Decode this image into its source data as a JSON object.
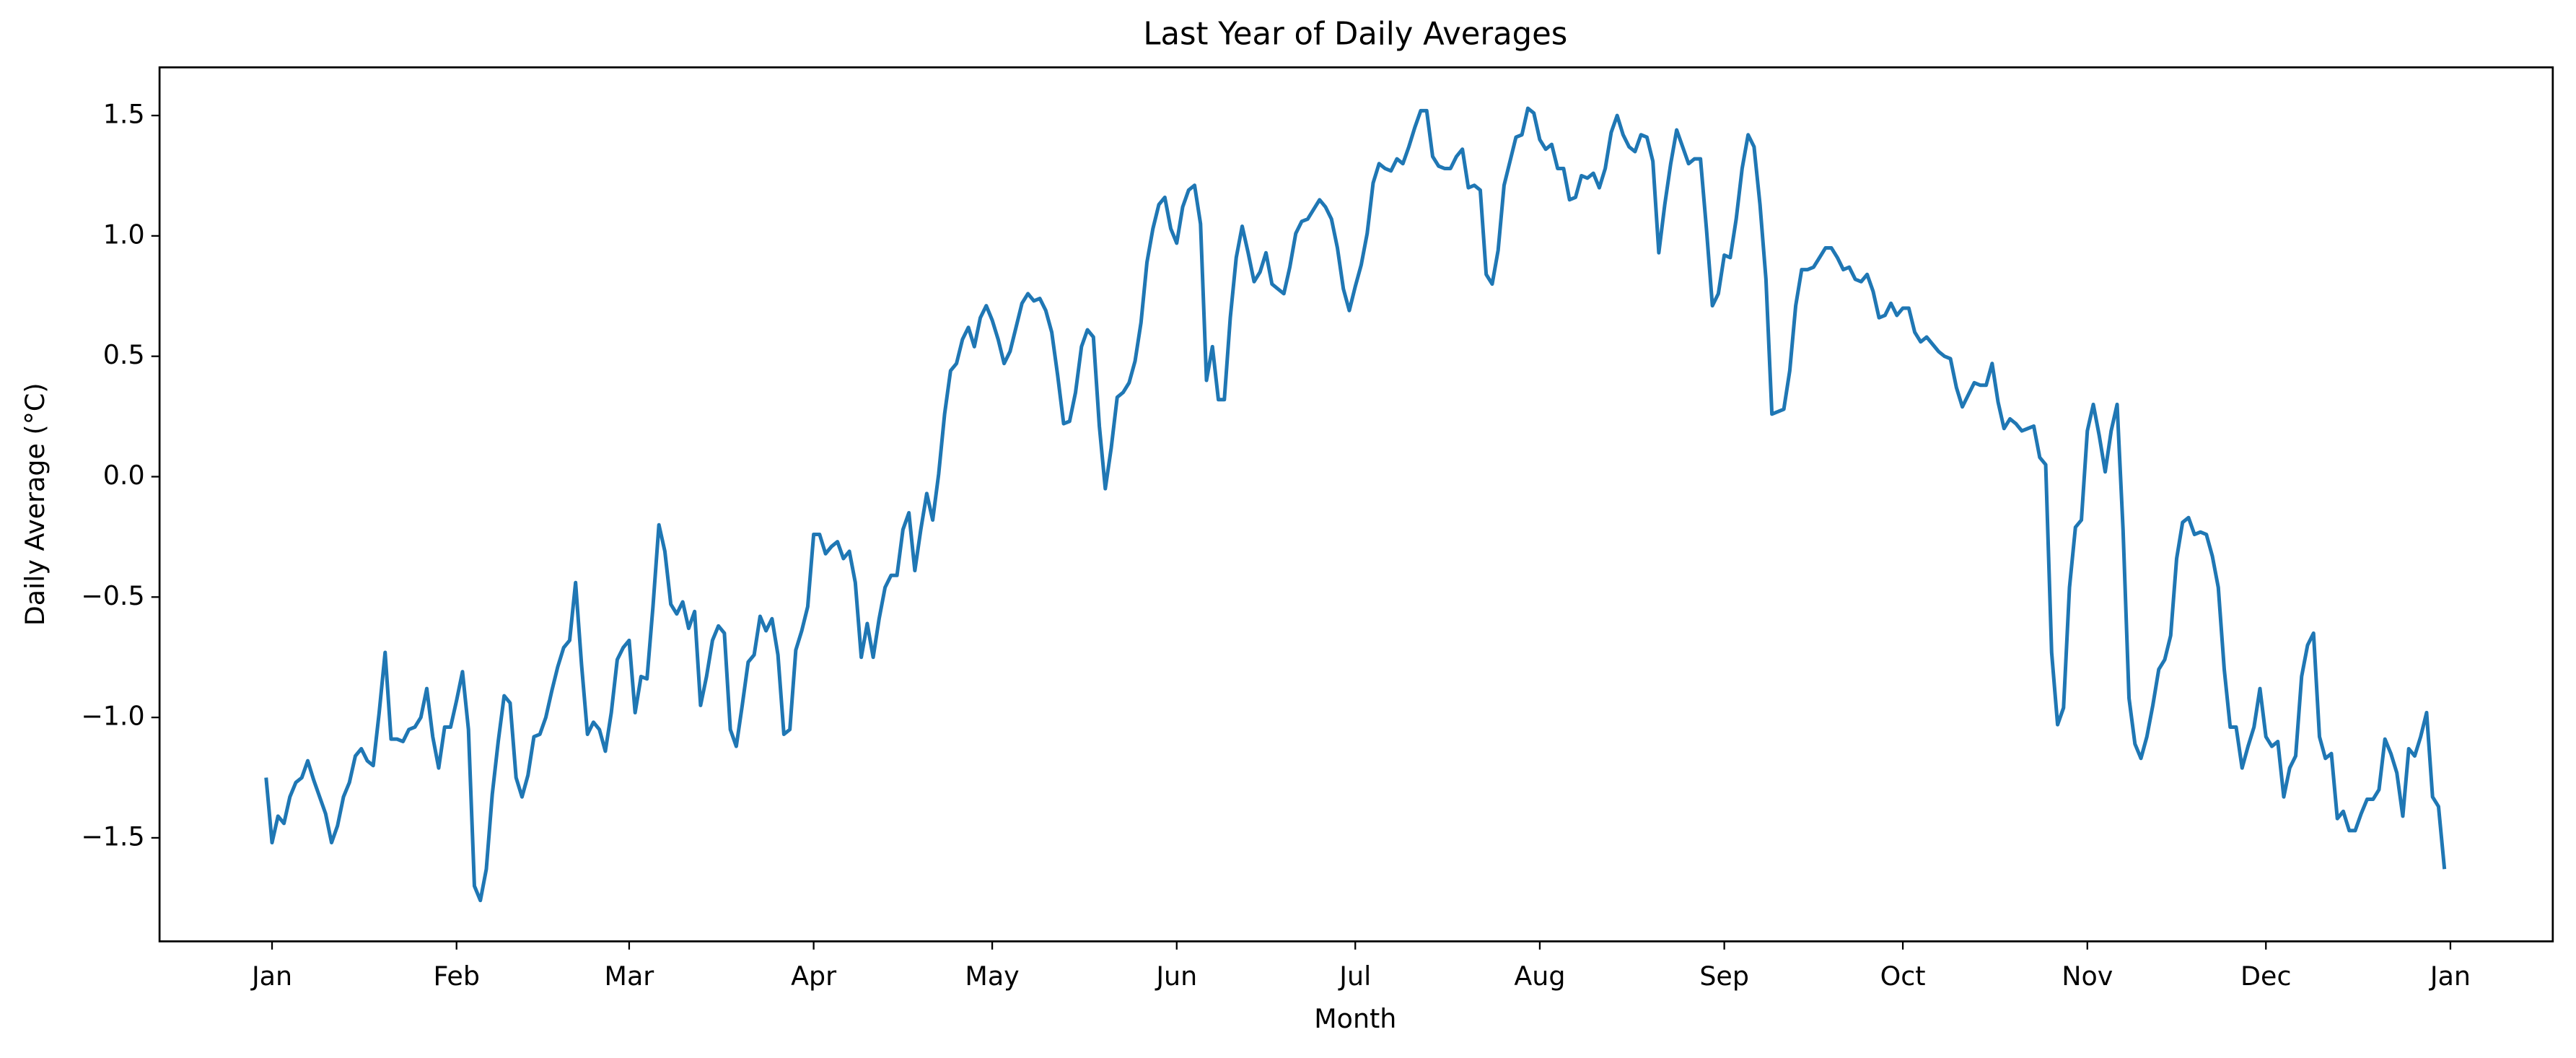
{
  "chart_data": {
    "type": "line",
    "title": "Last Year of Daily Averages",
    "xlabel": "Month",
    "ylabel": "Daily Average (°C)",
    "color": "#1f77b4",
    "grid": false,
    "xlim": [
      -17.9,
      384.2
    ],
    "ylim": [
      -1.93,
      1.7
    ],
    "xticks": [
      {
        "value": 1,
        "label": "Jan"
      },
      {
        "value": 32,
        "label": "Feb"
      },
      {
        "value": 61,
        "label": "Mar"
      },
      {
        "value": 92,
        "label": "Apr"
      },
      {
        "value": 122,
        "label": "May"
      },
      {
        "value": 153,
        "label": "Jun"
      },
      {
        "value": 183,
        "label": "Jul"
      },
      {
        "value": 214,
        "label": "Aug"
      },
      {
        "value": 245,
        "label": "Sep"
      },
      {
        "value": 275,
        "label": "Oct"
      },
      {
        "value": 306,
        "label": "Nov"
      },
      {
        "value": 336,
        "label": "Dec"
      },
      {
        "value": 367,
        "label": "Jan"
      }
    ],
    "yticks": [
      {
        "value": -1.5,
        "label": "−1.5"
      },
      {
        "value": -1.0,
        "label": "−1.0"
      },
      {
        "value": -0.5,
        "label": "−0.5"
      },
      {
        "value": 0,
        "label": "0.0"
      },
      0.5,
      {
        "value": 1.0,
        "label": "1.0"
      },
      1.5
    ],
    "x": [
      0,
      1,
      2,
      3,
      4,
      5,
      6,
      7,
      8,
      9,
      10,
      11,
      12,
      13,
      14,
      15,
      16,
      17,
      18,
      19,
      20,
      21,
      22,
      23,
      24,
      25,
      26,
      27,
      28,
      29,
      30,
      31,
      32,
      33,
      34,
      35,
      36,
      37,
      38,
      39,
      40,
      41,
      42,
      43,
      44,
      45,
      46,
      47,
      48,
      49,
      50,
      51,
      52,
      53,
      54,
      55,
      56,
      57,
      58,
      59,
      60,
      61,
      62,
      63,
      64,
      65,
      66,
      67,
      68,
      69,
      70,
      71,
      72,
      73,
      74,
      75,
      76,
      77,
      78,
      79,
      80,
      81,
      82,
      83,
      84,
      85,
      86,
      87,
      88,
      89,
      90,
      91,
      92,
      93,
      94,
      95,
      96,
      97,
      98,
      99,
      100,
      101,
      102,
      103,
      104,
      105,
      106,
      107,
      108,
      109,
      110,
      111,
      112,
      113,
      114,
      115,
      116,
      117,
      118,
      119,
      120,
      121,
      122,
      123,
      124,
      125,
      126,
      127,
      128,
      129,
      130,
      131,
      132,
      133,
      134,
      135,
      136,
      137,
      138,
      139,
      140,
      141,
      142,
      143,
      144,
      145,
      146,
      147,
      148,
      149,
      150,
      151,
      152,
      153,
      154,
      155,
      156,
      157,
      158,
      159,
      160,
      161,
      162,
      163,
      164,
      165,
      166,
      167,
      168,
      169,
      170,
      171,
      172,
      173,
      174,
      175,
      176,
      177,
      178,
      179,
      180,
      181,
      182,
      183,
      184,
      185,
      186,
      187,
      188,
      189,
      190,
      191,
      192,
      193,
      194,
      195,
      196,
      197,
      198,
      199,
      200,
      201,
      202,
      203,
      204,
      205,
      206,
      207,
      208,
      209,
      210,
      211,
      212,
      213,
      214,
      215,
      216,
      217,
      218,
      219,
      220,
      221,
      222,
      223,
      224,
      225,
      226,
      227,
      228,
      229,
      230,
      231,
      232,
      233,
      234,
      235,
      236,
      237,
      238,
      239,
      240,
      241,
      242,
      243,
      244,
      245,
      246,
      247,
      248,
      249,
      250,
      251,
      252,
      253,
      254,
      255,
      256,
      257,
      258,
      259,
      260,
      261,
      262,
      263,
      264,
      265,
      266,
      267,
      268,
      269,
      270,
      271,
      272,
      273,
      274,
      275,
      276,
      277,
      278,
      279,
      280,
      281,
      282,
      283,
      284,
      285,
      286,
      287,
      288,
      289,
      290,
      291,
      292,
      293,
      294,
      295,
      296,
      297,
      298,
      299,
      300,
      301,
      302,
      303,
      304,
      305,
      306,
      307,
      308,
      309,
      310,
      311,
      312,
      313,
      314,
      315,
      316,
      317,
      318,
      319,
      320,
      321,
      322,
      323,
      324,
      325,
      326,
      327,
      328,
      329,
      330,
      331,
      332,
      333,
      334,
      335,
      336,
      337,
      338,
      339,
      340,
      341,
      342,
      343,
      344,
      345,
      346,
      347,
      348,
      349,
      350,
      351,
      352,
      353,
      354,
      355,
      356,
      357,
      358,
      359,
      360,
      361,
      362,
      363,
      364,
      365,
      366
    ],
    "values": [
      -1.25,
      -1.52,
      -1.41,
      -1.44,
      -1.33,
      -1.27,
      -1.25,
      -1.18,
      -1.26,
      -1.33,
      -1.4,
      -1.52,
      -1.45,
      -1.33,
      -1.27,
      -1.16,
      -1.13,
      -1.18,
      -1.2,
      -0.98,
      -0.73,
      -1.09,
      -1.09,
      -1.1,
      -1.05,
      -1.04,
      -1.0,
      -0.88,
      -1.08,
      -1.21,
      -1.04,
      -1.04,
      -0.93,
      -0.81,
      -1.05,
      -1.7,
      -1.76,
      -1.63,
      -1.32,
      -1.1,
      -0.91,
      -0.94,
      -1.25,
      -1.33,
      -1.24,
      -1.08,
      -1.07,
      -1.0,
      -0.89,
      -0.79,
      -0.71,
      -0.68,
      -0.44,
      -0.78,
      -1.07,
      -1.02,
      -1.05,
      -1.14,
      -0.98,
      -0.76,
      -0.71,
      -0.68,
      -0.98,
      -0.83,
      -0.84,
      -0.54,
      -0.2,
      -0.31,
      -0.53,
      -0.57,
      -0.52,
      -0.63,
      -0.56,
      -0.95,
      -0.83,
      -0.68,
      -0.62,
      -0.65,
      -1.05,
      -1.12,
      -0.95,
      -0.77,
      -0.74,
      -0.58,
      -0.64,
      -0.59,
      -0.74,
      -1.07,
      -1.05,
      -0.72,
      -0.64,
      -0.54,
      -0.24,
      -0.24,
      -0.32,
      -0.29,
      -0.27,
      -0.34,
      -0.31,
      -0.44,
      -0.75,
      -0.61,
      -0.75,
      -0.59,
      -0.46,
      -0.41,
      -0.41,
      -0.22,
      -0.15,
      -0.39,
      -0.22,
      -0.07,
      -0.18,
      0.01,
      0.26,
      0.44,
      0.47,
      0.57,
      0.62,
      0.54,
      0.66,
      0.71,
      0.65,
      0.57,
      0.47,
      0.52,
      0.62,
      0.72,
      0.76,
      0.73,
      0.74,
      0.69,
      0.6,
      0.42,
      0.22,
      0.23,
      0.35,
      0.54,
      0.61,
      0.58,
      0.21,
      -0.05,
      0.12,
      0.33,
      0.35,
      0.39,
      0.48,
      0.64,
      0.89,
      1.03,
      1.13,
      1.16,
      1.03,
      0.97,
      1.12,
      1.19,
      1.21,
      1.05,
      0.4,
      0.54,
      0.32,
      0.32,
      0.66,
      0.91,
      1.04,
      0.93,
      0.81,
      0.85,
      0.93,
      0.8,
      0.78,
      0.76,
      0.87,
      1.01,
      1.06,
      1.07,
      1.11,
      1.15,
      1.12,
      1.07,
      0.95,
      0.78,
      0.69,
      0.79,
      0.88,
      1.01,
      1.22,
      1.3,
      1.28,
      1.27,
      1.32,
      1.3,
      1.37,
      1.45,
      1.52,
      1.52,
      1.33,
      1.29,
      1.28,
      1.28,
      1.33,
      1.36,
      1.2,
      1.21,
      1.19,
      0.84,
      0.8,
      0.94,
      1.21,
      1.31,
      1.41,
      1.42,
      1.53,
      1.51,
      1.4,
      1.36,
      1.38,
      1.28,
      1.28,
      1.15,
      1.16,
      1.25,
      1.24,
      1.26,
      1.2,
      1.28,
      1.43,
      1.5,
      1.42,
      1.37,
      1.35,
      1.42,
      1.41,
      1.31,
      0.93,
      1.13,
      1.3,
      1.44,
      1.37,
      1.3,
      1.32,
      1.32,
      1.03,
      0.71,
      0.76,
      0.92,
      0.91,
      1.07,
      1.28,
      1.42,
      1.37,
      1.13,
      0.82,
      0.26,
      0.27,
      0.28,
      0.44,
      0.71,
      0.86,
      0.86,
      0.87,
      0.91,
      0.95,
      0.95,
      0.91,
      0.86,
      0.87,
      0.82,
      0.81,
      0.84,
      0.77,
      0.66,
      0.67,
      0.72,
      0.67,
      0.7,
      0.7,
      0.6,
      0.56,
      0.58,
      0.55,
      0.52,
      0.5,
      0.49,
      0.37,
      0.29,
      0.34,
      0.39,
      0.38,
      0.38,
      0.47,
      0.31,
      0.2,
      0.24,
      0.22,
      0.19,
      0.2,
      0.21,
      0.08,
      0.05,
      -0.73,
      -1.03,
      -0.96,
      -0.46,
      -0.21,
      -0.18,
      0.19,
      0.3,
      0.17,
      0.02,
      0.19,
      0.3,
      -0.22,
      -0.92,
      -1.11,
      -1.17,
      -1.08,
      -0.95,
      -0.8,
      -0.76,
      -0.66,
      -0.34,
      -0.19,
      -0.17,
      -0.24,
      -0.23,
      -0.24,
      -0.33,
      -0.46,
      -0.8,
      -1.04,
      -1.04,
      -1.21,
      -1.12,
      -1.04,
      -0.88,
      -1.08,
      -1.12,
      -1.1,
      -1.33,
      -1.21,
      -1.16,
      -0.83,
      -0.7,
      -0.65,
      -1.08,
      -1.17,
      -1.15,
      -1.42,
      -1.39,
      -1.47,
      -1.47,
      -1.4,
      -1.34,
      -1.34,
      -1.3,
      -1.09,
      -1.15,
      -1.23,
      -1.41,
      -1.13,
      -1.16,
      -1.08,
      -0.98,
      -1.33,
      -1.37,
      -1.63
    ]
  }
}
